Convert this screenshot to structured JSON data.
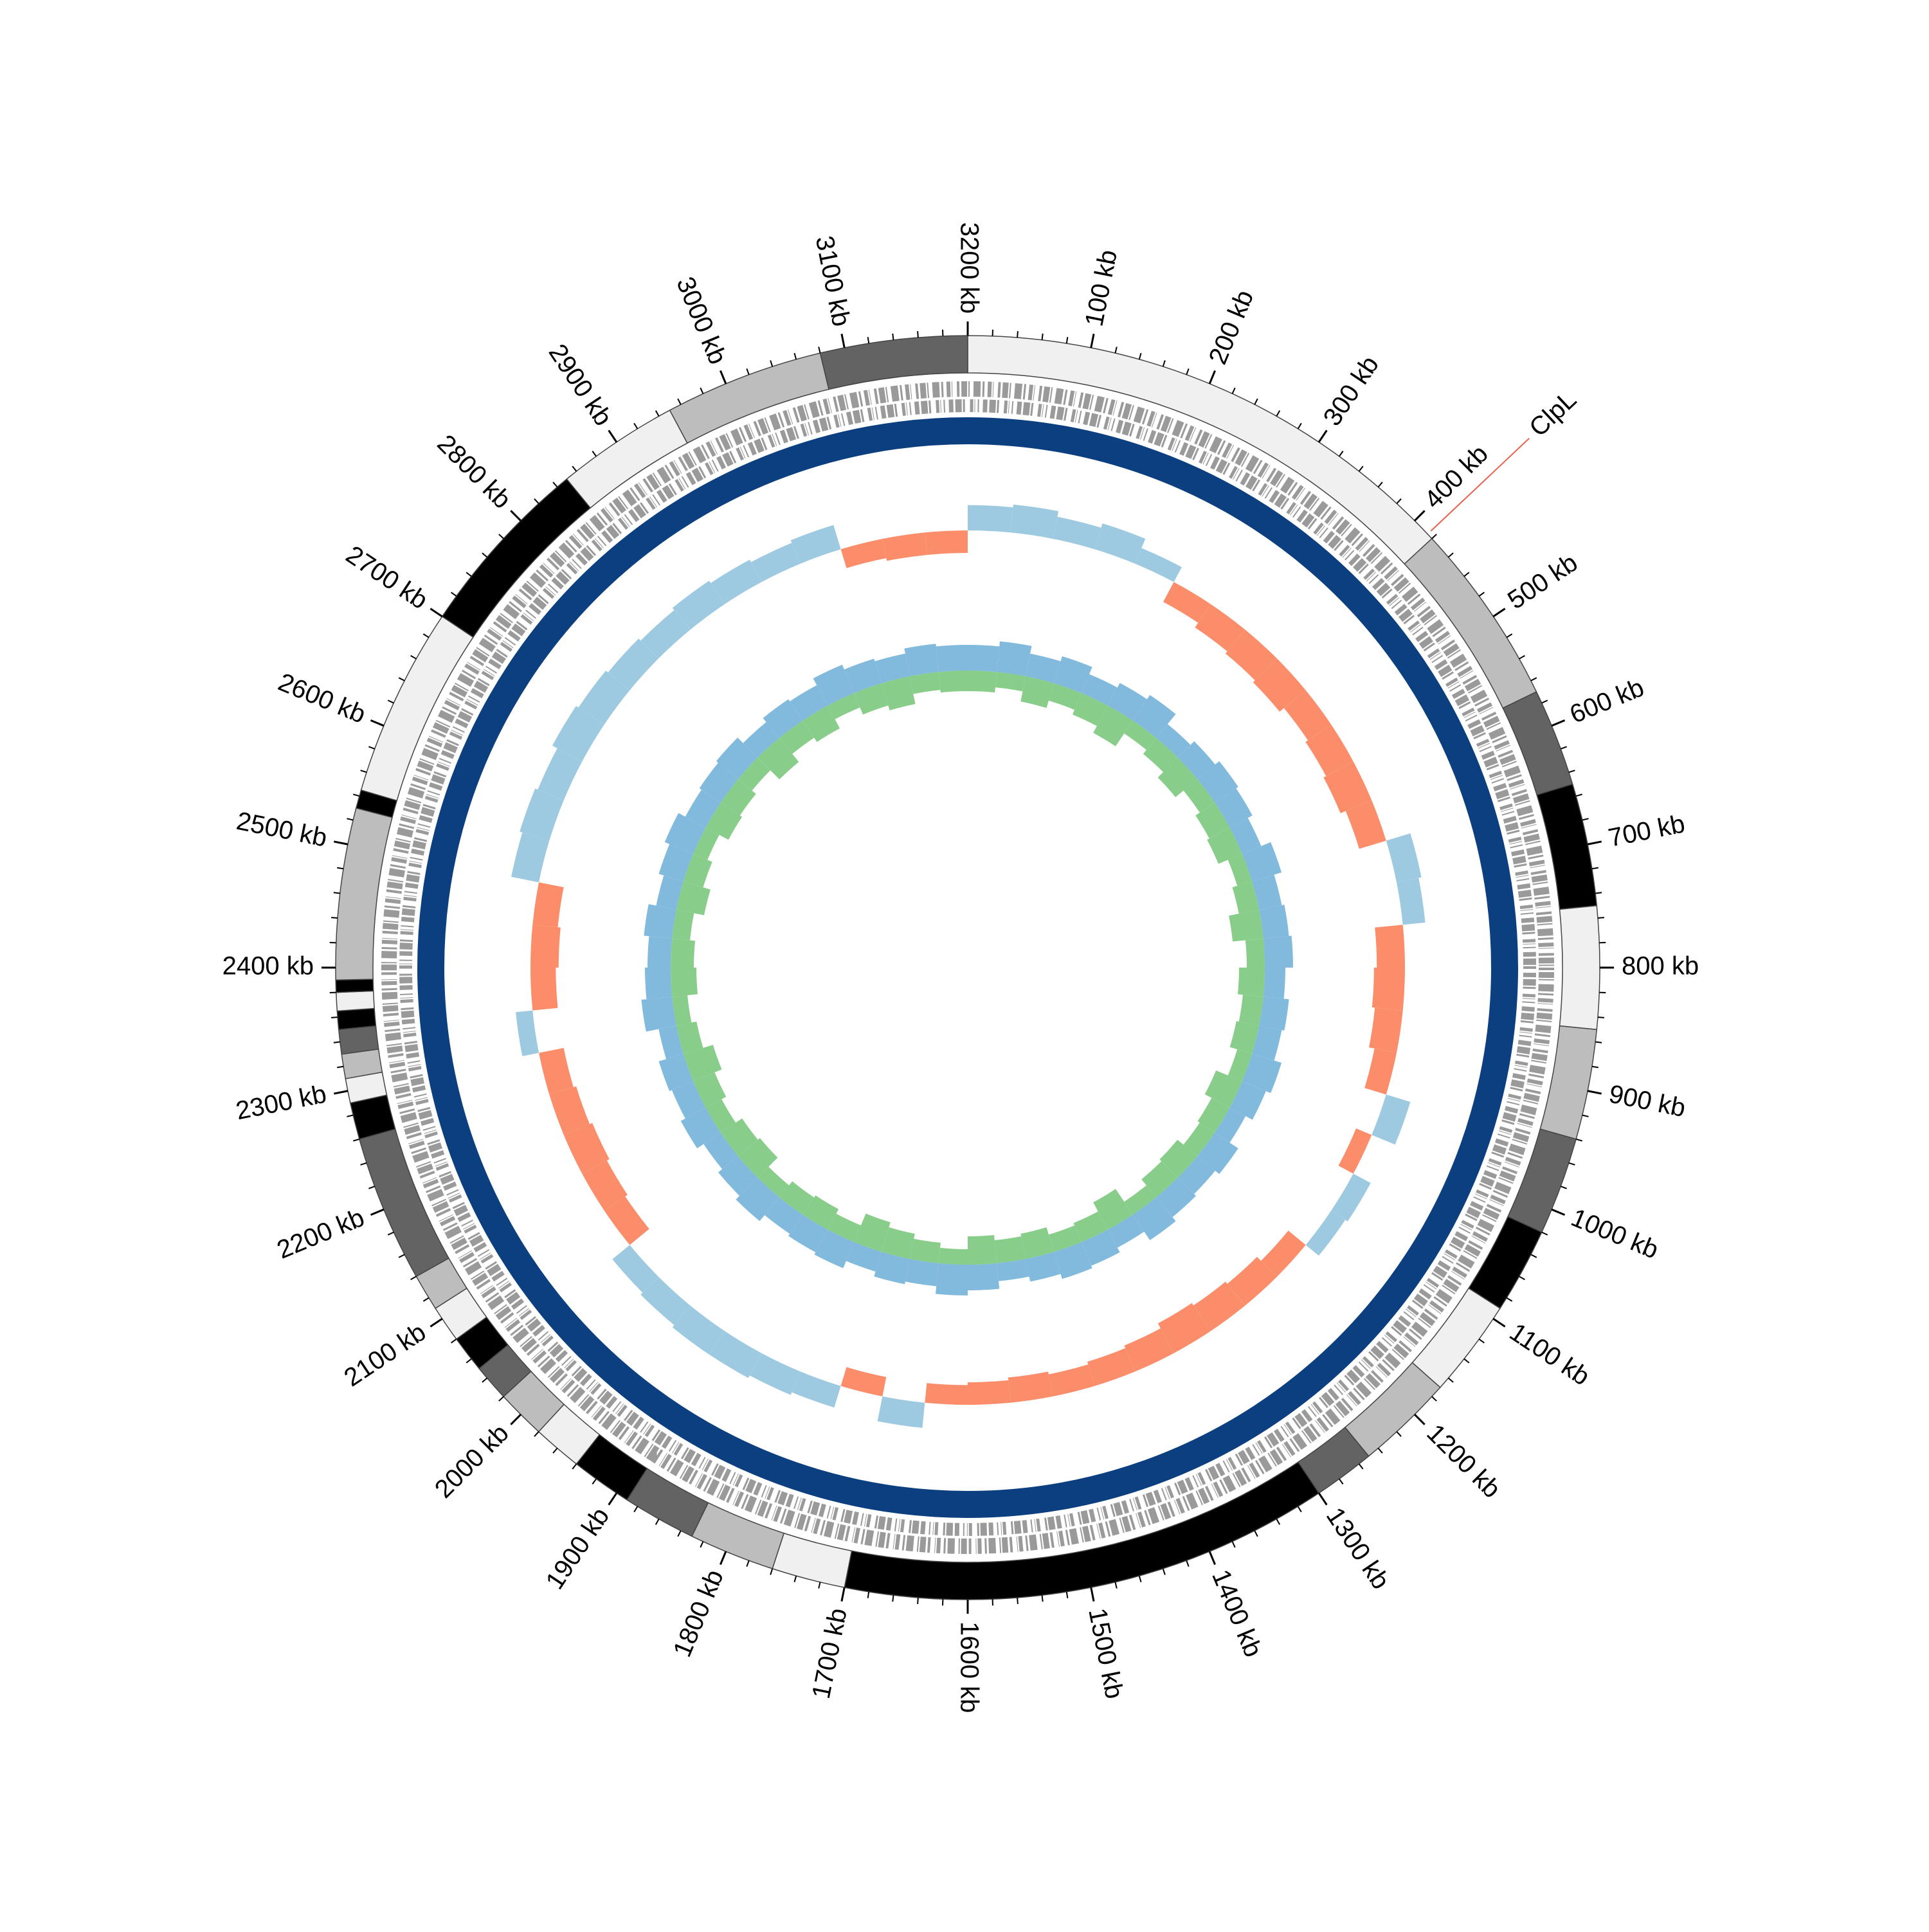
{
  "chart_data": {
    "type": "circular-genome",
    "xlim": [
      0,
      3200
    ],
    "xticks": [
      {
        "value": 100,
        "label": "100 kb"
      },
      {
        "value": 200,
        "label": "200 kb"
      },
      {
        "value": 300,
        "label": "300 kb"
      },
      {
        "value": 400,
        "label": "400 kb"
      },
      {
        "value": 500,
        "label": "500 kb"
      },
      {
        "value": 600,
        "label": "600 kb"
      },
      {
        "value": 700,
        "label": "700 kb"
      },
      {
        "value": 800,
        "label": "800 kb"
      },
      {
        "value": 900,
        "label": "900 kb"
      },
      {
        "value": 1000,
        "label": "1000 kb"
      },
      {
        "value": 1100,
        "label": "1100 kb"
      },
      {
        "value": 1200,
        "label": "1200 kb"
      },
      {
        "value": 1300,
        "label": "1300 kb"
      },
      {
        "value": 1400,
        "label": "1400 kb"
      },
      {
        "value": 1500,
        "label": "1500 kb"
      },
      {
        "value": 1600,
        "label": "1600 kb"
      },
      {
        "value": 1700,
        "label": "1700 kb"
      },
      {
        "value": 1800,
        "label": "1800 kb"
      },
      {
        "value": 1900,
        "label": "1900 kb"
      },
      {
        "value": 2000,
        "label": "2000 kb"
      },
      {
        "value": 2100,
        "label": "2100 kb"
      },
      {
        "value": 2200,
        "label": "2200 kb"
      },
      {
        "value": 2300,
        "label": "2300 kb"
      },
      {
        "value": 2400,
        "label": "2400 kb"
      },
      {
        "value": 2500,
        "label": "2500 kb"
      },
      {
        "value": 2600,
        "label": "2600 kb"
      },
      {
        "value": 2700,
        "label": "2700 kb"
      },
      {
        "value": 2800,
        "label": "2800 kb"
      },
      {
        "value": 2900,
        "label": "2900 kb"
      },
      {
        "value": 3000,
        "label": "3000 kb"
      },
      {
        "value": 3100,
        "label": "3100 kb"
      },
      {
        "value": 3200,
        "label": "3200 kb"
      }
    ],
    "bands": {
      "starts": [
        0,
        420,
        570,
        650,
        750,
        850,
        940,
        1020,
        1090,
        1170,
        1250,
        1300,
        1700,
        1760,
        1830,
        1890,
        1940,
        1980,
        2020,
        2050,
        2080,
        2110,
        2140,
        2260,
        2290,
        2310,
        2330,
        2350,
        2365,
        2380,
        2390,
        2530,
        2545,
        2700,
        2850,
        2950,
        3080
      ],
      "ends": [
        420,
        570,
        650,
        750,
        850,
        940,
        1020,
        1090,
        1170,
        1250,
        1300,
        1700,
        1760,
        1830,
        1890,
        1940,
        1980,
        2020,
        2050,
        2080,
        2110,
        2140,
        2260,
        2290,
        2310,
        2330,
        2350,
        2365,
        2380,
        2390,
        2530,
        2545,
        2700,
        2850,
        2950,
        3080,
        3200
      ],
      "colors": [
        "#f0f0f0",
        "#bdbdbd",
        "#636363",
        "#000000",
        "#f0f0f0",
        "#bdbdbd",
        "#636363",
        "#000000",
        "#f0f0f0",
        "#bdbdbd",
        "#636363",
        "#000000",
        "#f0f0f0",
        "#bdbdbd",
        "#636363",
        "#000000",
        "#f0f0f0",
        "#bdbdbd",
        "#636363",
        "#000000",
        "#f0f0f0",
        "#bdbdbd",
        "#636363",
        "#000000",
        "#f0f0f0",
        "#bdbdbd",
        "#636363",
        "#000000",
        "#f0f0f0",
        "#000000",
        "#bdbdbd",
        "#000000",
        "#f0f0f0",
        "#000000",
        "#f0f0f0",
        "#bdbdbd",
        "#636363"
      ]
    },
    "annotation": {
      "label": "ClpL",
      "position": 415,
      "color": "#2166ac",
      "line_color": "#e8604c"
    },
    "gc_skew": {
      "bins": [
        0,
        50,
        100,
        150,
        200,
        250,
        300,
        350,
        400,
        450,
        500,
        550,
        600,
        650,
        700,
        750,
        800,
        850,
        900,
        950,
        1000,
        1050,
        1100,
        1150,
        1200,
        1250,
        1300,
        1350,
        1400,
        1450,
        1500,
        1550,
        1600,
        1650,
        1700,
        1750,
        1800,
        1850,
        1900,
        1950,
        2000,
        2050,
        2100,
        2150,
        2200,
        2250,
        2300,
        2350,
        2400,
        2450,
        2500,
        2550,
        2600,
        2650,
        2700,
        2750,
        2800,
        2850,
        2900,
        2950,
        3000,
        3050,
        3100,
        3150,
        3200
      ],
      "values": [
        0.045,
        0.05,
        0.04,
        0.048,
        0.03,
        -0.04,
        -0.05,
        -0.055,
        -0.06,
        -0.05,
        -0.055,
        -0.06,
        -0.05,
        0.045,
        0.04,
        -0.05,
        -0.055,
        -0.05,
        -0.04,
        0.045,
        -0.03,
        0.035,
        0.03,
        -0.04,
        -0.05,
        -0.055,
        -0.06,
        -0.05,
        -0.045,
        -0.04,
        -0.045,
        -0.04,
        -0.035,
        0.045,
        -0.035,
        0.04,
        0.045,
        0.05,
        0.05,
        0.045,
        0.04,
        -0.045,
        -0.05,
        -0.055,
        -0.05,
        -0.045,
        0.03,
        -0.045,
        -0.05,
        -0.045,
        0.05,
        0.055,
        0.05,
        0.06,
        0.055,
        0.05,
        0.045,
        0.05,
        0.045,
        0.04,
        0.045,
        -0.035,
        -0.04,
        -0.04
      ],
      "positive_color": "#9ecae1",
      "negative_color": "#fc8d6a",
      "ylim": [
        -0.08,
        0.08
      ]
    },
    "gc_content": {
      "bins": [
        0,
        50,
        100,
        150,
        200,
        250,
        300,
        350,
        400,
        450,
        500,
        550,
        600,
        650,
        700,
        750,
        800,
        850,
        900,
        950,
        1000,
        1050,
        1100,
        1150,
        1200,
        1250,
        1300,
        1350,
        1400,
        1450,
        1500,
        1550,
        1600,
        1650,
        1700,
        1750,
        1800,
        1850,
        1900,
        1950,
        2000,
        2050,
        2100,
        2150,
        2200,
        2250,
        2300,
        2350,
        2400,
        2450,
        2500,
        2550,
        2600,
        2650,
        2700,
        2750,
        2800,
        2850,
        2900,
        2950,
        3000,
        3050,
        3100,
        3150,
        3200
      ],
      "ylim": [
        0,
        1
      ],
      "series": [
        {
          "color": "#6baed6",
          "values": [
            0.5,
            0.6,
            0.45,
            0.55,
            0.4,
            0.5,
            0.6,
            0.35,
            0.45,
            0.55,
            0.5,
            0.4,
            0.6,
            0.45,
            0.5,
            0.55,
            0.4,
            0.5,
            0.45,
            0.6,
            0.5,
            0.35,
            0.55,
            0.45,
            0.5,
            0.6,
            0.4,
            0.5,
            0.55,
            0.45,
            0.35,
            0.5,
            0.6,
            0.45,
            0.5,
            0.4,
            0.55,
            0.5,
            0.45,
            0.6,
            0.5,
            0.4,
            0.55,
            0.45,
            0.5,
            0.35,
            0.6,
            0.5,
            0.45,
            0.55,
            0.4,
            0.5,
            0.6,
            0.45,
            0.5,
            0.55,
            0.4,
            0.5,
            0.45,
            0.6,
            0.5,
            0.45,
            0.55,
            0.5
          ]
        },
        {
          "color": "#74c476",
          "values": [
            0.4,
            0.3,
            0.5,
            0.35,
            0.45,
            0.6,
            0.3,
            0.4,
            0.55,
            0.35,
            0.45,
            0.5,
            0.3,
            0.4,
            0.6,
            0.35,
            0.5,
            0.4,
            0.45,
            0.3,
            0.55,
            0.4,
            0.35,
            0.5,
            0.45,
            0.3,
            0.6,
            0.4,
            0.35,
            0.5,
            0.45,
            0.55,
            0.3,
            0.4,
            0.5,
            0.6,
            0.35,
            0.45,
            0.4,
            0.3,
            0.55,
            0.5,
            0.35,
            0.45,
            0.6,
            0.4,
            0.3,
            0.5,
            0.45,
            0.35,
            0.55,
            0.4,
            0.3,
            0.5,
            0.45,
            0.35,
            0.6,
            0.4,
            0.5,
            0.3,
            0.45,
            0.55,
            0.35,
            0.4
          ]
        }
      ]
    }
  }
}
